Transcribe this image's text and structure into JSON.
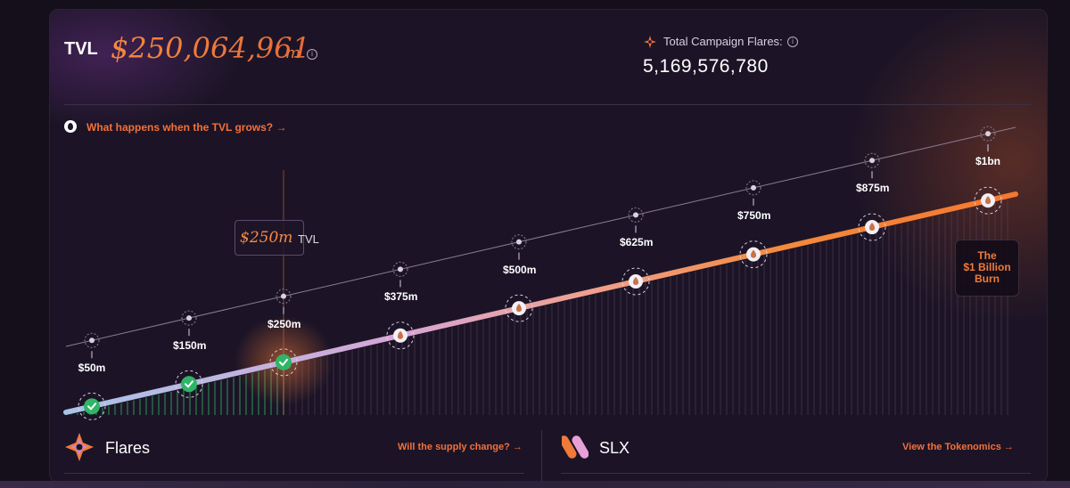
{
  "header": {
    "tvl_label": "TVL",
    "tvl_value": "$250,064,961",
    "tvl_unit": "m",
    "info_glyph": "i",
    "campaign_flares_label": "Total Campaign Flares:",
    "campaign_flares_value": "5,169,576,780"
  },
  "info_link": {
    "text": "What happens when the TVL grows? →",
    "icon": "drop-icon"
  },
  "chart": {
    "current_callout_value": "$250m",
    "current_callout_unit": "TVL",
    "milestones": [
      {
        "label": "$50m",
        "reached": true
      },
      {
        "label": "$150m",
        "reached": true
      },
      {
        "label": "$250m",
        "reached": true
      },
      {
        "label": "$375m",
        "reached": false
      },
      {
        "label": "$500m",
        "reached": false
      },
      {
        "label": "$625m",
        "reached": false
      },
      {
        "label": "$750m",
        "reached": false
      },
      {
        "label": "$875m",
        "reached": false
      },
      {
        "label": "$1bn",
        "reached": false
      }
    ],
    "burn_line1": "The",
    "burn_line2": "$1 Billion",
    "burn_line3": "Burn",
    "colors": {
      "accent": "#f2703a",
      "reached": "#2fb567"
    }
  },
  "sections": {
    "flares_title": "Flares",
    "flares_link": "Will the supply change? →",
    "slx_title": "SLX",
    "slx_link": "View the Tokenomics →"
  }
}
